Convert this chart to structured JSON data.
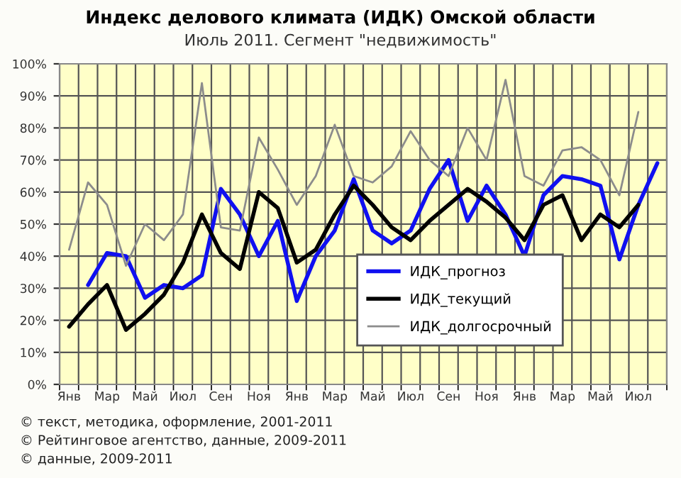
{
  "chart_data": {
    "type": "line",
    "title": "Индекс делового климата (ИДК) Омской области",
    "subtitle": "Июль 2011. Сегмент \"недвижимость\"",
    "categories": [
      "Янв",
      null,
      "Мар",
      null,
      "Май",
      null,
      "Июл",
      null,
      "Сен",
      null,
      "Ноя",
      null,
      "Янв",
      null,
      "Мар",
      null,
      "Май",
      null,
      "Июл",
      null,
      "Сен",
      null,
      "Ноя",
      null,
      "Янв",
      null,
      "Мар",
      null,
      "Май",
      null,
      "Июл",
      null
    ],
    "series": [
      {
        "name": "ИДК_прогноз",
        "color": "#1010f0",
        "values": [
          null,
          31,
          41,
          40,
          27,
          31,
          30,
          34,
          61,
          53,
          40,
          51,
          26,
          40,
          48,
          64,
          48,
          44,
          48,
          61,
          70,
          51,
          62,
          53,
          40,
          59,
          65,
          64,
          62,
          39,
          56,
          69
        ]
      },
      {
        "name": "ИДК_текущий",
        "color": "#000000",
        "values": [
          18,
          25,
          31,
          17,
          22,
          28,
          38,
          53,
          41,
          36,
          60,
          55,
          38,
          42,
          53,
          62,
          56,
          49,
          45,
          51,
          56,
          61,
          57,
          52,
          45,
          56,
          59,
          45,
          53,
          49,
          56,
          null
        ]
      },
      {
        "name": "ИДК_долгосрочный",
        "color": "#8c8c8c",
        "values": [
          42,
          63,
          56,
          37,
          50,
          45,
          53,
          94,
          49,
          48,
          77,
          67,
          56,
          65,
          81,
          65,
          63,
          68,
          79,
          70,
          65,
          80,
          70,
          95,
          65,
          62,
          73,
          74,
          70,
          59,
          85,
          null
        ]
      }
    ],
    "ylim": [
      0,
      100
    ],
    "yticks": [
      {
        "value": 0,
        "label": "0%"
      },
      {
        "value": 10,
        "label": "10%"
      },
      {
        "value": 20,
        "label": "20%"
      },
      {
        "value": 30,
        "label": "30%"
      },
      {
        "value": 40,
        "label": "40%"
      },
      {
        "value": 50,
        "label": "50%"
      },
      {
        "value": 60,
        "label": "60%"
      },
      {
        "value": 70,
        "label": "70%"
      },
      {
        "value": 80,
        "label": "80%"
      },
      {
        "value": 90,
        "label": "90%"
      },
      {
        "value": 100,
        "label": "100%"
      }
    ],
    "grid": true,
    "legend": "bottom right",
    "marker": "none",
    "line_style": "solid",
    "annotations": [
      "© текст, методика, оформление, 2001-2011",
      "© Рейтинговое агентство, данные, 2009-2011",
      "© данные, 2009-2011"
    ]
  }
}
